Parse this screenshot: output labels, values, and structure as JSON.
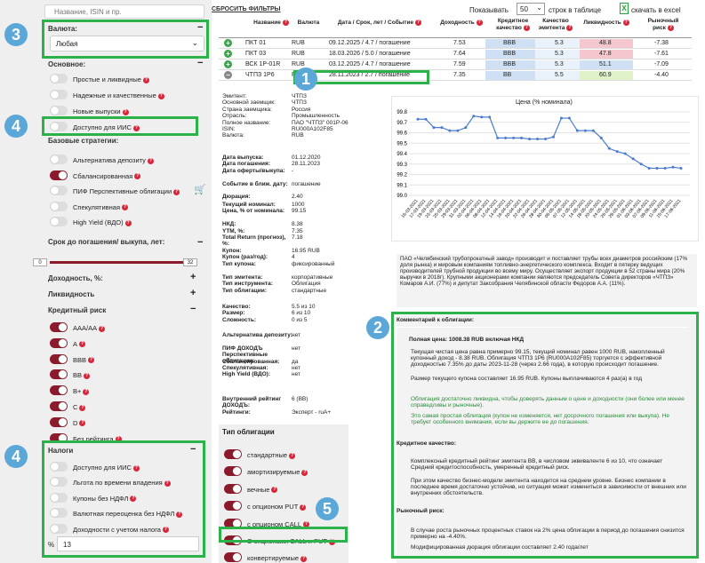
{
  "search": {
    "placeholder": "Название, ISIN и пр."
  },
  "reset": "СБРОСИТЬ ФИЛЬТРЫ",
  "paging": {
    "show": "Показывать",
    "count": "50",
    "suffix": "строк в таблице",
    "excel": "скачать в excel"
  },
  "currency": {
    "label": "Валюта:",
    "value": "Любая"
  },
  "basic": {
    "label": "Основное:",
    "items": [
      {
        "label": "Простые и ликвидные",
        "on": false
      },
      {
        "label": "Надежные и качественные",
        "on": false
      },
      {
        "label": "Новые выпуски",
        "on": false
      },
      {
        "label": "Доступно для ИИС",
        "on": false
      }
    ]
  },
  "strategies": {
    "label": "Базовые стратегии:",
    "items": [
      {
        "label": "Альтернатива депозиту",
        "on": false
      },
      {
        "label": "Сбалансированная",
        "on": true
      },
      {
        "label": "ПИФ Перспективные облигации",
        "on": false
      },
      {
        "label": "Спекулятивная",
        "on": false
      },
      {
        "label": "High Yield (ВДО)",
        "on": false
      }
    ]
  },
  "maturity": {
    "label": "Срок до погашения/ выкупа, лет:",
    "min": "0",
    "max": "32"
  },
  "yield_label": "Доходность, %:",
  "liquidity_label": "Ликвидность",
  "credit": {
    "label": "Кредитный риск",
    "items": [
      {
        "label": "AAA/AA",
        "on": true
      },
      {
        "label": "A",
        "on": true
      },
      {
        "label": "BBB",
        "on": true
      },
      {
        "label": "BB",
        "on": true
      },
      {
        "label": "B+",
        "on": true
      },
      {
        "label": "C",
        "on": true
      },
      {
        "label": "D",
        "on": true
      },
      {
        "label": "Без рейтинга",
        "on": true
      }
    ]
  },
  "taxes": {
    "label": "Налоги",
    "items": [
      {
        "label": "Доступно для ИИС",
        "on": false
      },
      {
        "label": "Льгота по времени владения",
        "on": false
      },
      {
        "label": "Купоны без НДФЛ",
        "on": false
      },
      {
        "label": "Валютная переоценка без НДФЛ",
        "on": false
      },
      {
        "label": "Доходности с учетом налога",
        "on": false
      }
    ],
    "pct": "%",
    "pct_value": "13"
  },
  "table": {
    "headers": [
      "Название",
      "Валюта",
      "Дата / Срок, лет / Событие",
      "Доходность",
      "Кредитное качество",
      "Качество эмитента",
      "Ликвидность",
      "Рыночный риск"
    ],
    "rows": [
      {
        "icon": "+",
        "name": "ПКТ 01",
        "cur": "RUB",
        "date": "09.12.2025 / 4.7 / погашение",
        "yld": "7.53",
        "cq": "BBB",
        "eq": "5.3",
        "liq": "48.8",
        "risk": "-7.38",
        "liqc": "#f4c7ce"
      },
      {
        "icon": "+",
        "name": "ПКТ 03",
        "cur": "RUB",
        "date": "18.03.2026 / 5.0 / погашение",
        "yld": "7.64",
        "cq": "BBB",
        "eq": "5.3",
        "liq": "47.8",
        "risk": "-7.61",
        "liqc": "#f4c7ce"
      },
      {
        "icon": "+",
        "name": "ВСК 1Р-01R",
        "cur": "RUB",
        "date": "03.12.2025 / 4.7 / погашение",
        "yld": "7.59",
        "cq": "BBB",
        "eq": "5.3",
        "liq": "51.1",
        "risk": "-7.09",
        "liqc": "#cfe0f4"
      },
      {
        "icon": "−",
        "name": "ЧТПЗ 1Р6",
        "cur": "RUB",
        "date": "28.11.2023 / 2.7 / погашение",
        "yld": "7.35",
        "cq": "BB",
        "eq": "5.5",
        "liq": "60.9",
        "risk": "-4.40",
        "liqc": "#dff2c8"
      }
    ]
  },
  "details": {
    "block1": [
      [
        "Эмитент:",
        "ЧТПЗ"
      ],
      [
        "Основной заемщик:",
        "ЧТПЗ"
      ],
      [
        "Страна заемщика:",
        "Россия"
      ],
      [
        "Отрасль:",
        "Промышленность"
      ],
      [
        "Полное название:",
        "ПАО \"ЧТПЗ\" 001Р-06"
      ],
      [
        "ISIN:",
        "RU000A102F85"
      ],
      [
        "Валюта:",
        "RUB"
      ]
    ],
    "block2": [
      [
        "Дата выпуска:",
        "01.12.2020"
      ],
      [
        "Дата погашения:",
        "28.11.2023"
      ],
      [
        "Дата оферты/выкупа:",
        "-"
      ],
      [
        "Событие в ближ. дату:",
        "погашение"
      ],
      [
        "Дюрация:",
        "2.40"
      ]
    ],
    "block3": [
      [
        "Текущий номинал:",
        "1000"
      ],
      [
        "Цена, % от номинала:",
        "99.15"
      ],
      [
        "НКД:",
        "8.38"
      ],
      [
        "YTM, %:",
        "7.35"
      ],
      [
        "Total Return (прогноз), %:",
        "7.18"
      ],
      [
        "Купон:",
        "16.95 RUB"
      ],
      [
        "Купон (раз/год):",
        "4"
      ],
      [
        "Тип купона:",
        "фиксированный"
      ]
    ],
    "block4": [
      [
        "Тип эмитента:",
        "корпоративные"
      ],
      [
        "Тип инструмента:",
        "Облигация"
      ],
      [
        "Тип облигации:",
        "стандартные"
      ]
    ],
    "block5": [
      [
        "Качество:",
        "5.5 из 10"
      ],
      [
        "Размер:",
        "6 из 10"
      ],
      [
        "Сложность:",
        "0 из 5"
      ]
    ],
    "block6": [
      [
        "Альтернатива депозиту:",
        "нет"
      ],
      [
        "ПИФ ДОХОДЪ Перспективные облигации:",
        "нет"
      ],
      [
        "Сбалансированная:",
        "да"
      ],
      [
        "Спекулятивная:",
        "нет"
      ],
      [
        "High Yield (ВДО):",
        "нет"
      ]
    ],
    "block7": [
      [
        "Внутренний рейтинг ДОХОДЪ:",
        "6 (BB)"
      ],
      [
        "Рейтинги:",
        "Эксперт - ruA+"
      ]
    ]
  },
  "bond_type": {
    "label": "Тип облигации",
    "items": [
      {
        "label": "стандартные",
        "on": true
      },
      {
        "label": "амортизируемые",
        "on": true
      },
      {
        "label": "вечные",
        "on": true
      },
      {
        "label": "с опционом PUT",
        "on": true
      },
      {
        "label": "с опционом CALL",
        "on": true
      },
      {
        "label": "С опционами CALL и PUT",
        "on": true
      },
      {
        "label": "конвертируемые",
        "on": true
      }
    ]
  },
  "chart_data": {
    "type": "line",
    "title": "Цена (% номинала)",
    "ylim": [
      99.0,
      99.8
    ],
    "yticks": [
      "99.8",
      "99.7",
      "99.6",
      "99.5",
      "99.4",
      "99.3",
      "99.2",
      "99.1",
      "99.0"
    ],
    "x": [
      "16-03-2021",
      "17-03-2021",
      "19-03-2021",
      "23-03-2021",
      "25-03-2021",
      "29-03-2021",
      "31-03-2021",
      "02-04-2021",
      "06-04-2021",
      "08-04-2021",
      "12-04-2021",
      "14-04-2021",
      "16-04-2021",
      "20-04-2021",
      "22-04-2021",
      "26-04-2021",
      "28-04-2021",
      "30-04-2021",
      "05-05-2021",
      "07-05-2021",
      "12-05-2021",
      "14-05-2021",
      "18-05-2021",
      "20-05-2021",
      "24-05-2021",
      "26-05-2021",
      "28-05-2021",
      "01-06-2021",
      "03-06-2021",
      "07-06-2021",
      "09-06-2021",
      "11-06-2021",
      "15-06-2021",
      "17-06-2021"
    ],
    "values": [
      99.73,
      99.73,
      99.65,
      99.65,
      99.62,
      99.62,
      99.65,
      99.76,
      99.75,
      99.75,
      99.55,
      99.55,
      99.55,
      99.55,
      99.54,
      99.54,
      99.54,
      99.56,
      99.74,
      99.74,
      99.62,
      99.62,
      99.62,
      99.55,
      99.45,
      99.42,
      99.4,
      99.35,
      99.3,
      99.26,
      99.26,
      99.26,
      99.27,
      99.26
    ]
  },
  "description": "ПАО «Челябинский трубопрокатный завод» производит и поставляет трубы всех диаметров российским (17% доля рынка) и мировым компаниям топливно-энергетического комплекса. Входит в пятерку ведущих производителей трубной продукции во всему миру. Осуществляет экспорт продукции в 52 страны мира (20% выручки в 2018г). Крупными акционерами компании являются председатель Совета директоров «ЧТПЗ» Комаров А.И. (77%) и депутат Заксобрания Челябинской области Федоров А.А. (11%).",
  "comment": {
    "title": "Комментарий к облигации:",
    "full_price": "Полная цена: 1008.38 RUB включая НКД",
    "p1": "Текущая чистая цена равна примерно 99.15, текущий номинал равен 1000 RUB, накопленный купонный доход - 8.38 RUB. Облигация ЧТПЗ 1Р6 (RU000A102F85) торгуется с эффективной доходностью 7.35% до даты 2023-11-28 (через 2.66 года), в которую происходит погашение.",
    "p2": "Размер текущего купона составляет 16.95 RUB. Купоны выплачиваются 4 раз(а) в год",
    "g1": "Облигация достаточно ликвидна, чтобы доверять данным о цене и доходности (они более или менее справедливы и рыночные).",
    "g2": "Это самая простая облигация (купон не изменяется, нет досрочного погашения или выкупа). Не требует особенного внимания, если вы держите ее до погашения.",
    "credit_title": "Кредитное качество:",
    "c1": "Комплексный кредитный рейтинг эмитента BB, в числовом эквиваленте 6 из 10, что означает Средний кредитоспособность, умеренный кредитный риск.",
    "c2": "При этом качество бизнес-модели эмитента находится на среднем уровне. Бизнес компании в последнее время достаточно устойчив, но ситуация может измениться в зависимости от внешних или внутренних обстоятельств.",
    "market_title": "Рыночный риск:",
    "m1": "В случае роста рыночных процентных ставок на 2% цена облигации в период до погашения снизится примерно на -4.40%.",
    "m2": "Модифицированная дюрация облигации составляет 2.40 года/лет"
  },
  "badges": [
    "1",
    "2",
    "3",
    "4",
    "4",
    "5"
  ]
}
